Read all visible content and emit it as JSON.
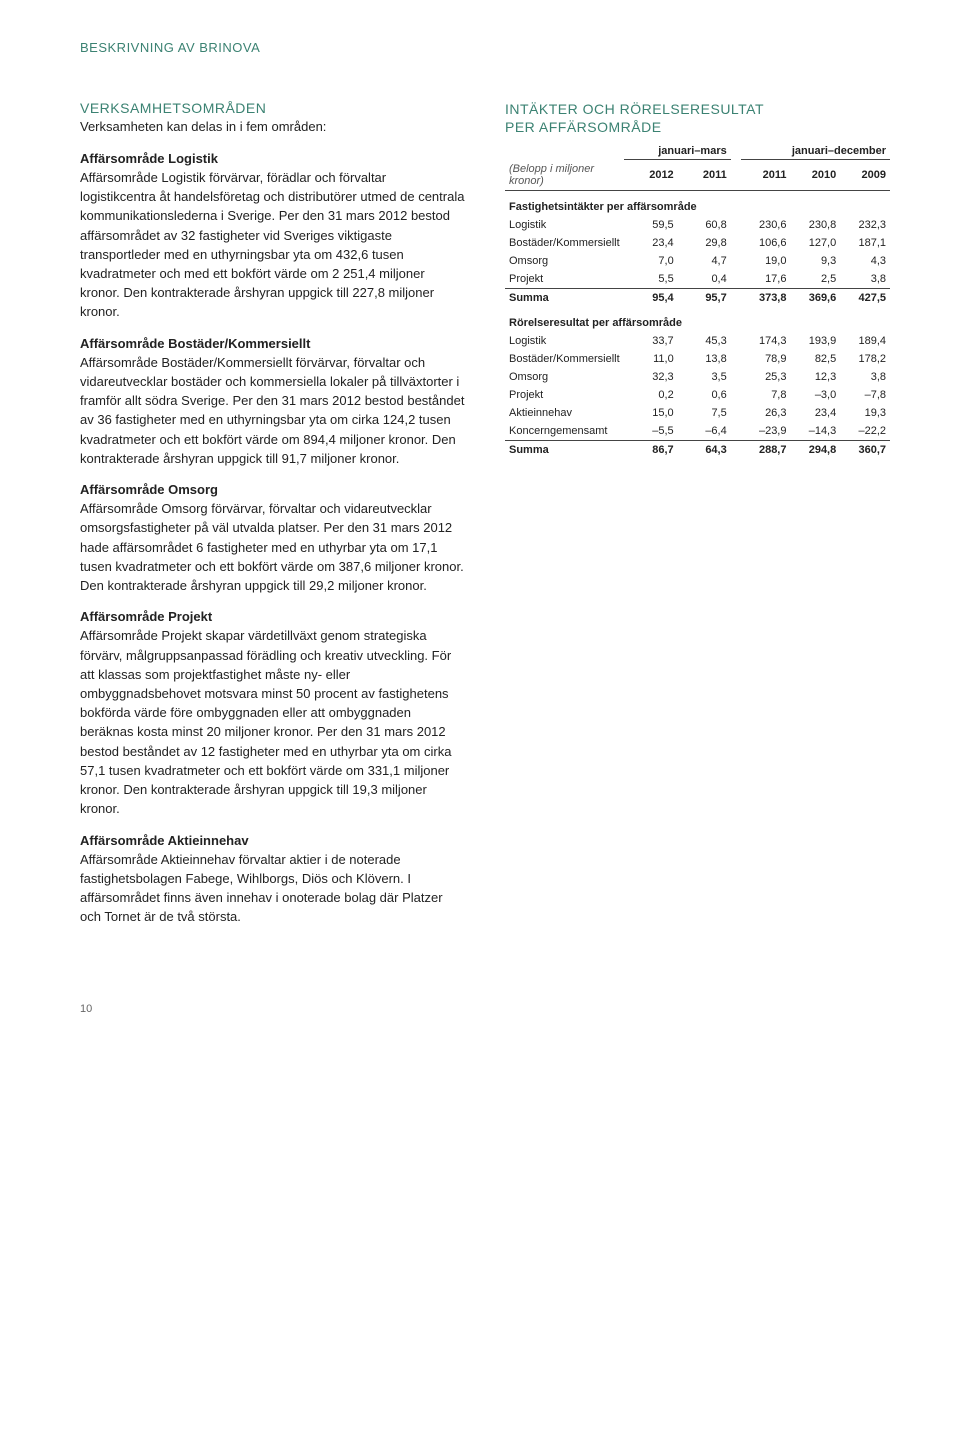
{
  "page_header": "BESKRIVNING AV BRINOVA",
  "page_number": "10",
  "left": {
    "section_title": "VERKSAMHETSOMRÅDEN",
    "intro": "Verksamheten kan delas in i fem områden:",
    "blocks": [
      {
        "title": "Affärsområde Logistik",
        "body": "Affärsområde Logistik förvärvar, förädlar och förvaltar logistikcentra åt handelsföretag och distributörer utmed de centrala kommunikationslederna i Sverige. Per den 31 mars 2012 bestod affärsområdet av 32 fastigheter vid Sveriges viktigaste transportleder med en uthyrningsbar yta om 432,6 tusen kvadratmeter och med ett bokfört värde om 2 251,4 miljoner kronor. Den kontrakterade årshyran uppgick till 227,8 miljoner kronor."
      },
      {
        "title": "Affärsområde Bostäder/Kommersiellt",
        "body": "Affärsområde Bostäder/Kommersiellt förvärvar, förvaltar och vidareutvecklar bostäder och kommersiella lokaler på tillväxtorter i framför allt södra Sverige. Per den 31 mars 2012 bestod beståndet av 36 fastigheter med en uthyrningsbar yta om cirka 124,2 tusen kvadratmeter och ett bokfört värde om 894,4 miljoner kronor. Den kontrakterade årshyran uppgick till 91,7 miljoner kronor."
      },
      {
        "title": "Affärsområde Omsorg",
        "body": "Affärsområde Omsorg förvärvar, förvaltar och vidareutvecklar omsorgsfastigheter på väl utvalda platser. Per den 31 mars 2012 hade affärsområdet 6 fastigheter med en uthyrbar yta om 17,1 tusen kvadratmeter och ett bokfört värde om 387,6 miljoner kronor. Den kontrakterade årshyran uppgick till 29,2 miljoner kronor."
      },
      {
        "title": "Affärsområde Projekt",
        "body": "Affärsområde Projekt skapar värdetillväxt genom strategiska förvärv, målgruppsanpassad förädling och kreativ utveckling. För att klassas som projektfastighet måste ny- eller ombyggnadsbehovet motsvara minst 50 procent av fastighetens bokförda värde före ombyggnaden eller att ombyggnaden beräknas kosta minst 20 miljoner kronor. Per den 31 mars 2012 bestod beståndet av 12 fastigheter med en uthyrbar yta om cirka 57,1 tusen kvadratmeter och ett bokfört värde om 331,1 miljoner kronor. Den kontrakterade årshyran uppgick till 19,3 miljoner kronor."
      },
      {
        "title": "Affärsområde Aktieinnehav",
        "body": "Affärsområde Aktieinnehav förvaltar aktier i de noterade fastighetsbolagen Fabege, Wihlborgs, Diös och Klövern. I affärsområdet finns även innehav i onoterade bolag där Platzer och Tornet är de två största."
      }
    ]
  },
  "right": {
    "title_line1": "INTÄKTER OCH RÖRELSERESULTAT",
    "title_line2": "PER AFFÄRSOMRÅDE",
    "periods": {
      "p1": "januari–mars",
      "p2": "januari–december"
    },
    "years_label": "(Belopp i miljoner kronor)",
    "years": [
      "2012",
      "2011",
      "2011",
      "2010",
      "2009"
    ],
    "group1": {
      "header": "Fastighetsintäkter per affärsområde",
      "rows": [
        {
          "label": "Logistik",
          "v": [
            "59,5",
            "60,8",
            "230,6",
            "230,8",
            "232,3"
          ]
        },
        {
          "label": "Bostäder/Kommersiellt",
          "v": [
            "23,4",
            "29,8",
            "106,6",
            "127,0",
            "187,1"
          ]
        },
        {
          "label": "Omsorg",
          "v": [
            "7,0",
            "4,7",
            "19,0",
            "9,3",
            "4,3"
          ]
        },
        {
          "label": "Projekt",
          "v": [
            "5,5",
            "0,4",
            "17,6",
            "2,5",
            "3,8"
          ]
        }
      ],
      "sum": {
        "label": "Summa",
        "v": [
          "95,4",
          "95,7",
          "373,8",
          "369,6",
          "427,5"
        ]
      }
    },
    "group2": {
      "header": "Rörelseresultat per affärsområde",
      "rows": [
        {
          "label": "Logistik",
          "v": [
            "33,7",
            "45,3",
            "174,3",
            "193,9",
            "189,4"
          ]
        },
        {
          "label": "Bostäder/Kommersiellt",
          "v": [
            "11,0",
            "13,8",
            "78,9",
            "82,5",
            "178,2"
          ]
        },
        {
          "label": "Omsorg",
          "v": [
            "32,3",
            "3,5",
            "25,3",
            "12,3",
            "3,8"
          ]
        },
        {
          "label": "Projekt",
          "v": [
            "0,2",
            "0,6",
            "7,8",
            "–3,0",
            "–7,8"
          ]
        },
        {
          "label": "Aktieinnehav",
          "v": [
            "15,0",
            "7,5",
            "26,3",
            "23,4",
            "19,3"
          ]
        },
        {
          "label": "Koncerngemensamt",
          "v": [
            "–5,5",
            "–6,4",
            "–23,9",
            "–14,3",
            "–22,2"
          ]
        }
      ],
      "sum": {
        "label": "Summa",
        "v": [
          "86,7",
          "64,3",
          "288,7",
          "294,8",
          "360,7"
        ]
      }
    }
  }
}
